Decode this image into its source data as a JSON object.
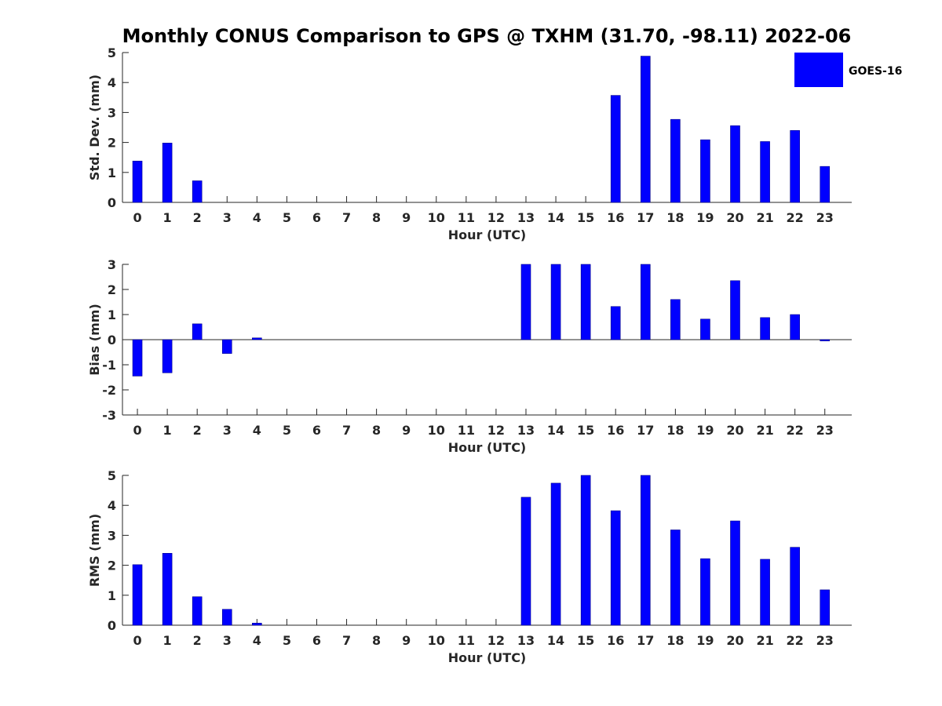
{
  "title": "Monthly CONUS Comparison to GPS @ TXHM (31.70, -98.11) 2022-06",
  "legend": {
    "label": "GOES-16",
    "color": "#0000ff",
    "placement": "top-right"
  },
  "chart_data": [
    {
      "type": "bar",
      "name": "std-dev",
      "xlabel": "Hour (UTC)",
      "ylabel": "Std. Dev. (mm)",
      "ylim": [
        0,
        5
      ],
      "yticks": [
        0,
        1,
        2,
        3,
        4,
        5
      ],
      "categories": [
        "0",
        "1",
        "2",
        "3",
        "4",
        "5",
        "6",
        "7",
        "8",
        "9",
        "10",
        "11",
        "12",
        "13",
        "14",
        "15",
        "16",
        "17",
        "18",
        "19",
        "20",
        "21",
        "22",
        "23"
      ],
      "series": [
        {
          "name": "GOES-16",
          "values": [
            1.38,
            1.98,
            0.72,
            null,
            null,
            null,
            null,
            null,
            null,
            null,
            null,
            null,
            null,
            null,
            null,
            null,
            3.57,
            4.88,
            2.77,
            2.09,
            2.56,
            2.03,
            2.4,
            1.2
          ]
        }
      ],
      "grid": false
    },
    {
      "type": "bar",
      "name": "bias",
      "xlabel": "Hour (UTC)",
      "ylabel": "Bias (mm)",
      "ylim": [
        -3,
        3
      ],
      "yticks": [
        -3,
        -2,
        -1,
        0,
        1,
        2,
        3
      ],
      "categories": [
        "0",
        "1",
        "2",
        "3",
        "4",
        "5",
        "6",
        "7",
        "8",
        "9",
        "10",
        "11",
        "12",
        "13",
        "14",
        "15",
        "16",
        "17",
        "18",
        "19",
        "20",
        "21",
        "22",
        "23"
      ],
      "series": [
        {
          "name": "GOES-16",
          "values": [
            -1.45,
            -1.32,
            0.63,
            -0.55,
            0.07,
            null,
            null,
            null,
            null,
            null,
            null,
            null,
            null,
            3.0,
            3.0,
            3.0,
            1.32,
            3.0,
            1.6,
            0.82,
            2.35,
            0.88,
            1.0,
            -0.05
          ]
        }
      ],
      "grid": false
    },
    {
      "type": "bar",
      "name": "rms",
      "xlabel": "Hour (UTC)",
      "ylabel": "RMS (mm)",
      "ylim": [
        0,
        5
      ],
      "yticks": [
        0,
        1,
        2,
        3,
        4,
        5
      ],
      "categories": [
        "0",
        "1",
        "2",
        "3",
        "4",
        "5",
        "6",
        "7",
        "8",
        "9",
        "10",
        "11",
        "12",
        "13",
        "14",
        "15",
        "16",
        "17",
        "18",
        "19",
        "20",
        "21",
        "22",
        "23"
      ],
      "series": [
        {
          "name": "GOES-16",
          "values": [
            2.02,
            2.4,
            0.95,
            0.53,
            0.07,
            null,
            null,
            null,
            null,
            null,
            null,
            null,
            null,
            4.27,
            4.74,
            5.0,
            3.82,
            5.0,
            3.18,
            2.22,
            3.48,
            2.2,
            2.6,
            1.18
          ]
        }
      ],
      "grid": false
    }
  ]
}
